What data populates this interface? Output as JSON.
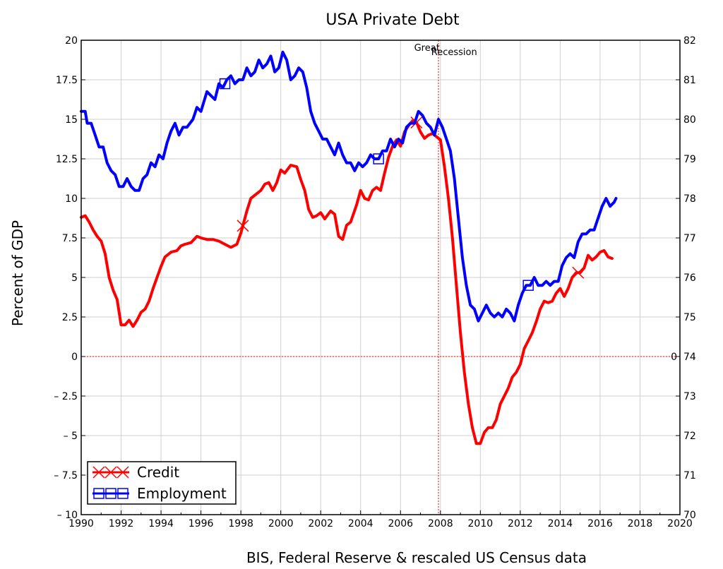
{
  "chart_data": {
    "type": "line",
    "title": "USA Private Debt",
    "xlabel": "BIS, Federal Reserve & rescaled US Census data",
    "ylabel": "Percent of GDP",
    "xlim": [
      1990,
      2020
    ],
    "ylim": [
      -10,
      20
    ],
    "y2lim": [
      70,
      82
    ],
    "x_ticks": [
      "1990",
      "1992",
      "1994",
      "1996",
      "1998",
      "2000",
      "2002",
      "2004",
      "2006",
      "2008",
      "2010",
      "2012",
      "2014",
      "2016",
      "2018",
      "2020"
    ],
    "y_ticks": [
      "20",
      "17.5",
      "15",
      "12.5",
      "10",
      "7.5",
      "5",
      "2.5",
      "0",
      "– 2.5",
      "– 5",
      "– 7.5",
      "– 10"
    ],
    "y2_ticks": [
      "82",
      "81",
      "80",
      "79",
      "78",
      "77",
      "76",
      "75",
      "74",
      "73",
      "72",
      "71",
      "70"
    ],
    "grid": true,
    "legend_position": "bottom-left",
    "zero_line_label": "0",
    "annotations": [
      {
        "text": "Great",
        "x": 2008.0
      },
      {
        "text": "Recession",
        "x": 2008.0
      }
    ],
    "recession_line_x": 2007.9,
    "series": [
      {
        "name": "Credit",
        "color": "#ff0000",
        "marker": "x",
        "axis": "left",
        "marker_x": [
          1998.1,
          2006.8,
          2014.9
        ],
        "points": [
          [
            1990.0,
            8.8
          ],
          [
            1990.2,
            8.9
          ],
          [
            1990.4,
            8.5
          ],
          [
            1990.6,
            8.0
          ],
          [
            1990.8,
            7.6
          ],
          [
            1991.0,
            7.3
          ],
          [
            1991.2,
            6.5
          ],
          [
            1991.4,
            5.0
          ],
          [
            1991.6,
            4.2
          ],
          [
            1991.8,
            3.6
          ],
          [
            1992.0,
            2.0
          ],
          [
            1992.2,
            2.0
          ],
          [
            1992.4,
            2.3
          ],
          [
            1992.6,
            1.9
          ],
          [
            1992.8,
            2.3
          ],
          [
            1993.0,
            2.8
          ],
          [
            1993.2,
            3.0
          ],
          [
            1993.4,
            3.5
          ],
          [
            1993.6,
            4.3
          ],
          [
            1993.8,
            5.0
          ],
          [
            1994.0,
            5.7
          ],
          [
            1994.2,
            6.3
          ],
          [
            1994.5,
            6.6
          ],
          [
            1994.8,
            6.7
          ],
          [
            1995.0,
            7.0
          ],
          [
            1995.2,
            7.1
          ],
          [
            1995.5,
            7.2
          ],
          [
            1995.8,
            7.6
          ],
          [
            1996.0,
            7.5
          ],
          [
            1996.3,
            7.4
          ],
          [
            1996.6,
            7.4
          ],
          [
            1996.9,
            7.3
          ],
          [
            1997.2,
            7.1
          ],
          [
            1997.5,
            6.9
          ],
          [
            1997.8,
            7.1
          ],
          [
            1998.0,
            7.8
          ],
          [
            1998.3,
            9.2
          ],
          [
            1998.5,
            10.0
          ],
          [
            1998.8,
            10.3
          ],
          [
            1999.0,
            10.5
          ],
          [
            1999.2,
            10.9
          ],
          [
            1999.4,
            11.0
          ],
          [
            1999.6,
            10.5
          ],
          [
            1999.8,
            11.0
          ],
          [
            2000.0,
            11.8
          ],
          [
            2000.2,
            11.6
          ],
          [
            2000.5,
            12.1
          ],
          [
            2000.8,
            12.0
          ],
          [
            2001.0,
            11.2
          ],
          [
            2001.2,
            10.5
          ],
          [
            2001.4,
            9.3
          ],
          [
            2001.6,
            8.8
          ],
          [
            2001.8,
            8.9
          ],
          [
            2002.0,
            9.1
          ],
          [
            2002.2,
            8.7
          ],
          [
            2002.5,
            9.2
          ],
          [
            2002.7,
            9.0
          ],
          [
            2002.9,
            7.6
          ],
          [
            2003.1,
            7.4
          ],
          [
            2003.3,
            8.3
          ],
          [
            2003.5,
            8.5
          ],
          [
            2003.8,
            9.6
          ],
          [
            2004.0,
            10.5
          ],
          [
            2004.2,
            10.0
          ],
          [
            2004.4,
            9.9
          ],
          [
            2004.6,
            10.5
          ],
          [
            2004.8,
            10.7
          ],
          [
            2005.0,
            10.5
          ],
          [
            2005.2,
            11.6
          ],
          [
            2005.4,
            12.6
          ],
          [
            2005.6,
            13.3
          ],
          [
            2005.8,
            13.7
          ],
          [
            2006.0,
            13.3
          ],
          [
            2006.2,
            14.2
          ],
          [
            2006.4,
            14.6
          ],
          [
            2006.6,
            14.9
          ],
          [
            2006.8,
            14.8
          ],
          [
            2007.0,
            14.2
          ],
          [
            2007.2,
            13.8
          ],
          [
            2007.4,
            14.0
          ],
          [
            2007.6,
            14.1
          ],
          [
            2007.8,
            13.9
          ],
          [
            2008.0,
            13.7
          ],
          [
            2008.2,
            12.0
          ],
          [
            2008.4,
            10.0
          ],
          [
            2008.6,
            7.5
          ],
          [
            2008.8,
            4.5
          ],
          [
            2009.0,
            1.5
          ],
          [
            2009.2,
            -1.0
          ],
          [
            2009.4,
            -3.0
          ],
          [
            2009.6,
            -4.5
          ],
          [
            2009.8,
            -5.5
          ],
          [
            2010.0,
            -5.5
          ],
          [
            2010.2,
            -4.8
          ],
          [
            2010.4,
            -4.5
          ],
          [
            2010.6,
            -4.5
          ],
          [
            2010.8,
            -4.0
          ],
          [
            2011.0,
            -3.0
          ],
          [
            2011.2,
            -2.5
          ],
          [
            2011.4,
            -2.0
          ],
          [
            2011.6,
            -1.3
          ],
          [
            2011.8,
            -1.0
          ],
          [
            2012.0,
            -0.5
          ],
          [
            2012.2,
            0.5
          ],
          [
            2012.4,
            1.0
          ],
          [
            2012.6,
            1.5
          ],
          [
            2012.8,
            2.2
          ],
          [
            2013.0,
            3.0
          ],
          [
            2013.2,
            3.5
          ],
          [
            2013.4,
            3.4
          ],
          [
            2013.6,
            3.5
          ],
          [
            2013.8,
            4.0
          ],
          [
            2014.0,
            4.3
          ],
          [
            2014.2,
            3.8
          ],
          [
            2014.4,
            4.3
          ],
          [
            2014.6,
            5.0
          ],
          [
            2014.8,
            5.3
          ],
          [
            2015.0,
            5.3
          ],
          [
            2015.2,
            5.6
          ],
          [
            2015.4,
            6.4
          ],
          [
            2015.6,
            6.1
          ],
          [
            2015.8,
            6.3
          ],
          [
            2016.0,
            6.6
          ],
          [
            2016.2,
            6.7
          ],
          [
            2016.4,
            6.3
          ],
          [
            2016.6,
            6.2
          ]
        ]
      },
      {
        "name": "Employment",
        "color": "#0000ff",
        "marker": "square",
        "axis": "right",
        "marker_x": [
          1997.2,
          2004.9,
          2012.4
        ],
        "points": [
          [
            1990.0,
            80.2
          ],
          [
            1990.2,
            80.2
          ],
          [
            1990.3,
            79.9
          ],
          [
            1990.5,
            79.9
          ],
          [
            1990.7,
            79.6
          ],
          [
            1990.9,
            79.3
          ],
          [
            1991.1,
            79.3
          ],
          [
            1991.3,
            78.9
          ],
          [
            1991.5,
            78.7
          ],
          [
            1991.7,
            78.6
          ],
          [
            1991.9,
            78.3
          ],
          [
            1992.1,
            78.3
          ],
          [
            1992.3,
            78.5
          ],
          [
            1992.5,
            78.3
          ],
          [
            1992.7,
            78.2
          ],
          [
            1992.9,
            78.2
          ],
          [
            1993.1,
            78.5
          ],
          [
            1993.3,
            78.6
          ],
          [
            1993.5,
            78.9
          ],
          [
            1993.7,
            78.8
          ],
          [
            1993.9,
            79.1
          ],
          [
            1994.1,
            79.0
          ],
          [
            1994.3,
            79.4
          ],
          [
            1994.5,
            79.7
          ],
          [
            1994.7,
            79.9
          ],
          [
            1994.9,
            79.6
          ],
          [
            1995.1,
            79.8
          ],
          [
            1995.3,
            79.8
          ],
          [
            1995.6,
            80.0
          ],
          [
            1995.8,
            80.3
          ],
          [
            1996.0,
            80.2
          ],
          [
            1996.3,
            80.7
          ],
          [
            1996.5,
            80.6
          ],
          [
            1996.7,
            80.5
          ],
          [
            1996.9,
            80.9
          ],
          [
            1997.1,
            80.8
          ],
          [
            1997.3,
            81.0
          ],
          [
            1997.5,
            81.1
          ],
          [
            1997.7,
            80.9
          ],
          [
            1997.9,
            81.0
          ],
          [
            1998.1,
            81.0
          ],
          [
            1998.3,
            81.3
          ],
          [
            1998.5,
            81.1
          ],
          [
            1998.7,
            81.2
          ],
          [
            1998.9,
            81.5
          ],
          [
            1999.1,
            81.3
          ],
          [
            1999.3,
            81.4
          ],
          [
            1999.5,
            81.6
          ],
          [
            1999.7,
            81.2
          ],
          [
            1999.9,
            81.3
          ],
          [
            2000.1,
            81.7
          ],
          [
            2000.3,
            81.5
          ],
          [
            2000.5,
            81.0
          ],
          [
            2000.7,
            81.1
          ],
          [
            2000.9,
            81.3
          ],
          [
            2001.1,
            81.2
          ],
          [
            2001.3,
            80.8
          ],
          [
            2001.5,
            80.2
          ],
          [
            2001.7,
            79.9
          ],
          [
            2001.9,
            79.7
          ],
          [
            2002.1,
            79.5
          ],
          [
            2002.3,
            79.5
          ],
          [
            2002.5,
            79.3
          ],
          [
            2002.7,
            79.1
          ],
          [
            2002.9,
            79.4
          ],
          [
            2003.1,
            79.1
          ],
          [
            2003.3,
            78.9
          ],
          [
            2003.5,
            78.9
          ],
          [
            2003.7,
            78.7
          ],
          [
            2003.9,
            78.9
          ],
          [
            2004.1,
            78.8
          ],
          [
            2004.3,
            78.9
          ],
          [
            2004.5,
            79.1
          ],
          [
            2004.7,
            79.0
          ],
          [
            2004.9,
            79.0
          ],
          [
            2005.1,
            79.2
          ],
          [
            2005.3,
            79.2
          ],
          [
            2005.5,
            79.5
          ],
          [
            2005.7,
            79.3
          ],
          [
            2005.9,
            79.5
          ],
          [
            2006.1,
            79.4
          ],
          [
            2006.3,
            79.8
          ],
          [
            2006.5,
            79.9
          ],
          [
            2006.7,
            79.9
          ],
          [
            2006.9,
            80.2
          ],
          [
            2007.1,
            80.1
          ],
          [
            2007.3,
            79.9
          ],
          [
            2007.5,
            79.8
          ],
          [
            2007.7,
            79.6
          ],
          [
            2007.9,
            80.0
          ],
          [
            2008.1,
            79.8
          ],
          [
            2008.3,
            79.5
          ],
          [
            2008.5,
            79.2
          ],
          [
            2008.7,
            78.5
          ],
          [
            2008.9,
            77.5
          ],
          [
            2009.1,
            76.5
          ],
          [
            2009.3,
            75.8
          ],
          [
            2009.5,
            75.3
          ],
          [
            2009.7,
            75.2
          ],
          [
            2009.9,
            74.9
          ],
          [
            2010.1,
            75.1
          ],
          [
            2010.3,
            75.3
          ],
          [
            2010.5,
            75.1
          ],
          [
            2010.7,
            75.0
          ],
          [
            2010.9,
            75.1
          ],
          [
            2011.1,
            75.0
          ],
          [
            2011.3,
            75.2
          ],
          [
            2011.5,
            75.1
          ],
          [
            2011.7,
            74.9
          ],
          [
            2011.9,
            75.3
          ],
          [
            2012.1,
            75.6
          ],
          [
            2012.3,
            75.8
          ],
          [
            2012.5,
            75.8
          ],
          [
            2012.7,
            76.0
          ],
          [
            2012.9,
            75.8
          ],
          [
            2013.1,
            75.8
          ],
          [
            2013.3,
            75.9
          ],
          [
            2013.5,
            75.8
          ],
          [
            2013.7,
            75.9
          ],
          [
            2013.9,
            75.9
          ],
          [
            2014.1,
            76.3
          ],
          [
            2014.3,
            76.5
          ],
          [
            2014.5,
            76.6
          ],
          [
            2014.7,
            76.5
          ],
          [
            2014.9,
            76.9
          ],
          [
            2015.1,
            77.1
          ],
          [
            2015.3,
            77.1
          ],
          [
            2015.5,
            77.2
          ],
          [
            2015.7,
            77.2
          ],
          [
            2015.9,
            77.5
          ],
          [
            2016.1,
            77.8
          ],
          [
            2016.3,
            78.0
          ],
          [
            2016.5,
            77.8
          ],
          [
            2016.7,
            77.9
          ],
          [
            2016.8,
            78.0
          ]
        ]
      }
    ]
  }
}
